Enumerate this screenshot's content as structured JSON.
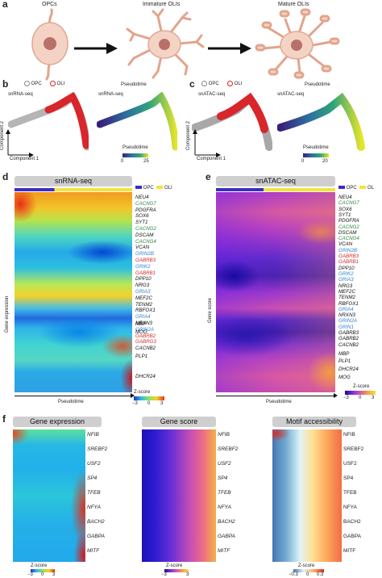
{
  "panel_a": {
    "letter": "a",
    "stages": [
      "OPCs",
      "Immature OLIs",
      "Mature OLIs"
    ]
  },
  "panel_b": {
    "letter": "b",
    "legend": [
      "OPC",
      "OLI"
    ],
    "plot1_title": "snRNA-seq",
    "plot2_title": "Pseudotime",
    "plot2_sub": "snRNA-seq",
    "axis_x": "Component 1",
    "axis_y": "Component 2",
    "colorbar_title": "Pseudotime",
    "colorbar_ticks": [
      "0",
      "25"
    ]
  },
  "panel_c": {
    "letter": "c",
    "legend": [
      "OPC",
      "OLI"
    ],
    "plot1_title": "snATAC-seq",
    "plot2_title": "Pseudotime",
    "plot2_sub": "snATAC-seq",
    "axis_x": "Component 1",
    "axis_y": "Component 2",
    "colorbar_title": "Pseudotime",
    "colorbar_ticks": [
      "0",
      "20"
    ]
  },
  "panel_d": {
    "letter": "d",
    "header": "snRNA-seq",
    "legend": [
      "OPC",
      "OLI"
    ],
    "y_label": "Gene expression",
    "x_label": "Pseudotime",
    "zscore_label": "Z-score",
    "zscore_ticks": [
      "−3",
      "0",
      "3"
    ],
    "genes": [
      "NEU4",
      "CACNG7",
      "PDGFRA",
      "SOX6",
      "SYT1",
      "CACNG2",
      "DSCAM",
      "CACNG4",
      "VCAN",
      "GRIN2B",
      "GABRB3",
      "GRIK2",
      "GABRB1",
      "DPP10",
      "NRG3",
      "GRIA3",
      "MEF2C",
      "TENM2",
      "RBFOX1",
      "GRIA4",
      "NRXN3",
      "GRIN2A",
      "GABRB2",
      "GABRG3",
      "CACNB2",
      "MBP",
      "MOG",
      "PLP1",
      "DHCR24"
    ]
  },
  "panel_e": {
    "letter": "e",
    "header": "snATAC-seq",
    "legend": [
      "OPC",
      "OL"
    ],
    "y_label": "Gene score",
    "x_label": "Pseudotime",
    "zscore_label": "Z-score",
    "zscore_ticks": [
      "−3",
      "0",
      "3"
    ],
    "genes": [
      "NEU4",
      "CACNG7",
      "SOX6",
      "SYT1",
      "PDGFRA",
      "CACNG2",
      "DSCAM",
      "CACNG4",
      "VCAN",
      "GRIN2B",
      "GABRB3",
      "GABRB1",
      "DPP10",
      "GRIK2",
      "GRIA3",
      "NRG3",
      "MEF2C",
      "TENM2",
      "RBFOX1",
      "GRIA4",
      "NRXN3",
      "GRIN2A",
      "GRIN1",
      "GABRB3",
      "GABRB2",
      "CACNB2",
      "MBP",
      "PLP1",
      "DHCR24",
      "MOG"
    ]
  },
  "panel_f": {
    "letter": "f",
    "headers": [
      "Gene expression",
      "Gene score",
      "Motif accessibility"
    ],
    "genes": [
      "NFIB",
      "SREBF2",
      "USF2",
      "SP4",
      "TFEB",
      "NFYA",
      "BACH2",
      "GABPA",
      "MITF"
    ],
    "zscore_label": "Z-score",
    "ticks1": [
      "−3",
      "0",
      "3"
    ],
    "ticks2": [
      "−3",
      "3"
    ],
    "ticks3": [
      "−0.3",
      "0",
      "0.3"
    ]
  },
  "colors": {
    "opc": "#3b2cc4",
    "oli": "#f7e13a",
    "gene_green": "#2e8b3e",
    "gene_blue": "#2f86d1",
    "gene_red": "#d22d2d",
    "gene_black": "#111111"
  }
}
